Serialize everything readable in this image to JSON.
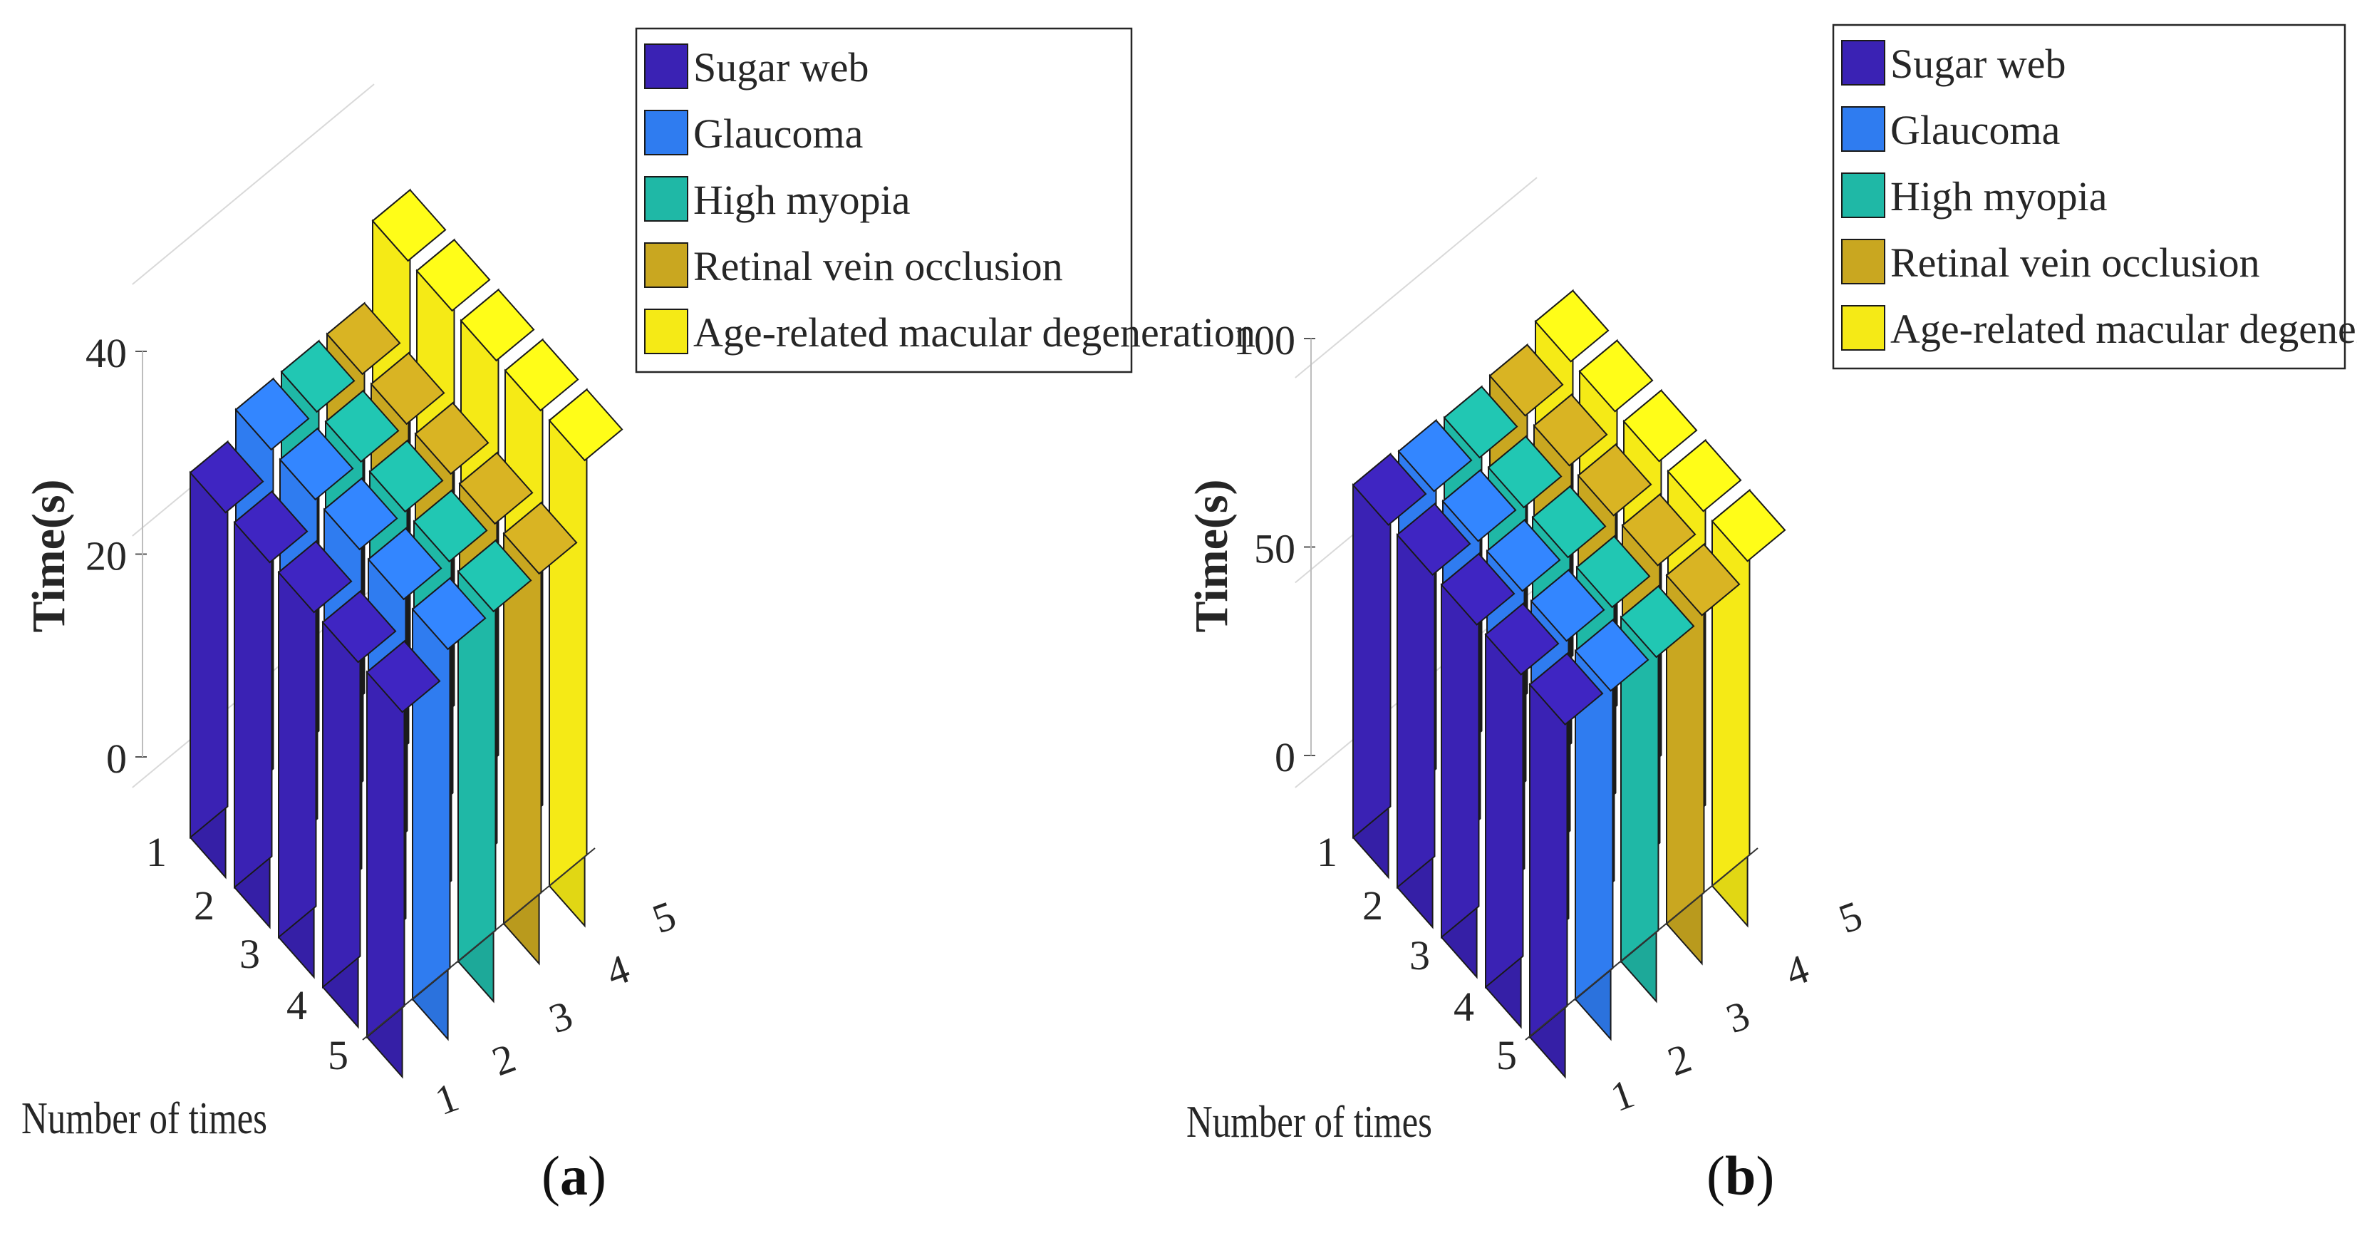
{
  "chart_data": [
    {
      "type": "bar3d",
      "panel_label": "a",
      "xlabel": "Number of times",
      "ylabel": "Time(s)",
      "x_ticks": [
        "1",
        "2",
        "3",
        "4",
        "5"
      ],
      "series_ticks": [
        "1",
        "2",
        "3",
        "4",
        "5"
      ],
      "z_ticks": [
        "0",
        "20",
        "40"
      ],
      "zlim": [
        0,
        40
      ],
      "categories": [
        "1",
        "2",
        "3",
        "4",
        "5"
      ],
      "series": [
        {
          "name": "Sugar web",
          "values": [
            29,
            29,
            29,
            29,
            29
          ]
        },
        {
          "name": "Glaucoma",
          "values": [
            31,
            31,
            31,
            31,
            31
          ]
        },
        {
          "name": "High myopia",
          "values": [
            31,
            31,
            31,
            31,
            31
          ]
        },
        {
          "name": "Retinal vein occlusion",
          "values": [
            31,
            31,
            31,
            31,
            31
          ]
        },
        {
          "name": "Age-related macular degeneration",
          "values": [
            37,
            37,
            37,
            37,
            37
          ]
        }
      ],
      "legend": "top-right"
    },
    {
      "type": "bar3d",
      "panel_label": "b",
      "xlabel": "Number of times",
      "ylabel": "Time(s)",
      "x_ticks": [
        "1",
        "2",
        "3",
        "4",
        "5"
      ],
      "series_ticks": [
        "1",
        "2",
        "3",
        "4",
        "5"
      ],
      "z_ticks": [
        "0",
        "50",
        "100"
      ],
      "zlim": [
        0,
        100
      ],
      "categories": [
        "1",
        "2",
        "3",
        "4",
        "5"
      ],
      "series": [
        {
          "name": "Sugar web",
          "values": [
            86,
            86,
            86,
            86,
            86
          ]
        },
        {
          "name": "Glaucoma",
          "values": [
            85,
            85,
            85,
            85,
            85
          ]
        },
        {
          "name": "High myopia",
          "values": [
            84,
            84,
            84,
            84,
            84
          ]
        },
        {
          "name": "Retinal vein occlusion",
          "values": [
            85,
            85,
            85,
            85,
            85
          ]
        },
        {
          "name": "Age-related macular degeneration",
          "values": [
            89,
            89,
            89,
            89,
            89
          ]
        }
      ],
      "legend": "top-right"
    }
  ],
  "colors": {
    "series": [
      "#3a22b4",
      "#2f7cf0",
      "#1fb8a6",
      "#c9a720",
      "#f5ea16"
    ],
    "edge": "#1a1a1a",
    "grid": "#d9d9d9"
  }
}
